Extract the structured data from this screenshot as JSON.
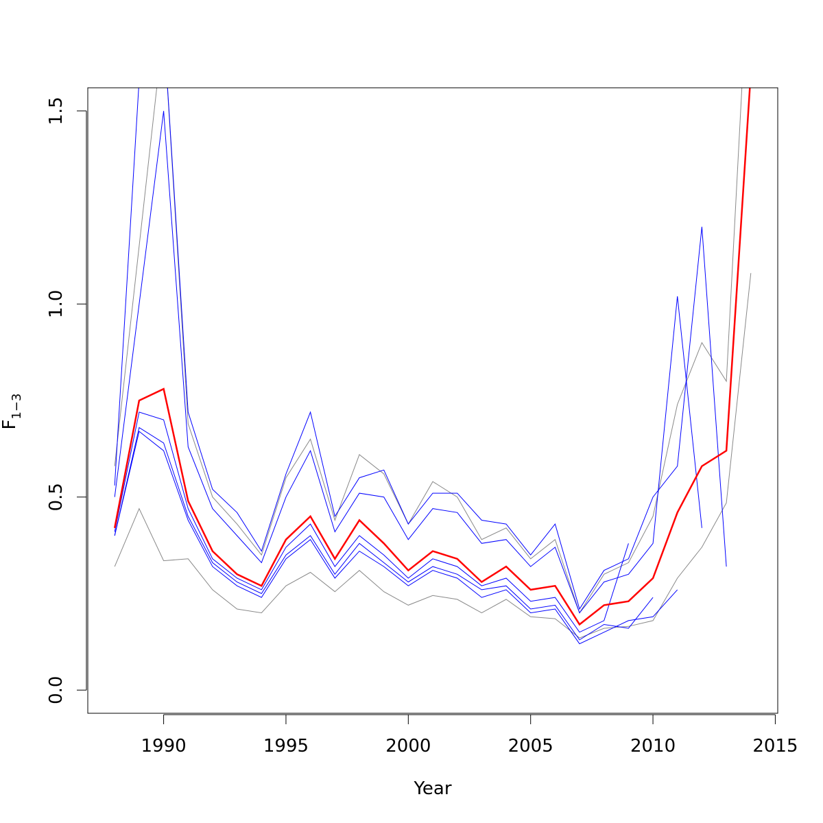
{
  "chart_data": {
    "type": "line",
    "title": "",
    "xlabel": "Year",
    "ylabel": "F",
    "ylabel_subscript": "1−3",
    "xlim": [
      1986.9,
      2015.1
    ],
    "ylim": [
      -0.06,
      1.56
    ],
    "xticks": [
      1990,
      1995,
      2000,
      2005,
      2010,
      2015
    ],
    "xtick_labels": [
      "1990",
      "1995",
      "2000",
      "2005",
      "2010",
      "2015"
    ],
    "yticks": [
      0.0,
      0.5,
      1.0,
      1.5
    ],
    "ytick_labels": [
      "0.0",
      "0.5",
      "1.0",
      "1.5"
    ],
    "grid": false,
    "series": [
      {
        "color": "#888888",
        "width": 1,
        "x": [
          1988,
          1989,
          1990,
          1991,
          1992,
          1993,
          1994,
          1995,
          1996,
          1997,
          1998,
          1999,
          2000,
          2001,
          2002,
          2003,
          2004,
          2005,
          2006,
          2007,
          2008,
          2009,
          2010,
          2011,
          2012,
          2013,
          2014
        ],
        "values": [
          0.32,
          0.47,
          0.335,
          0.34,
          0.26,
          0.21,
          0.2,
          0.27,
          0.305,
          0.255,
          0.31,
          0.255,
          0.22,
          0.245,
          0.235,
          0.2,
          0.235,
          0.19,
          0.185,
          0.135,
          0.16,
          0.165,
          0.18,
          0.29,
          0.37,
          0.485,
          1.08
        ]
      },
      {
        "color": "#888888",
        "width": 1,
        "x": [
          1988,
          1989,
          1990,
          1991,
          1992,
          1993,
          1994,
          1995,
          1996,
          1997,
          1998,
          1999,
          2000,
          2001,
          2002,
          2003,
          2004,
          2005,
          2006,
          2007,
          2008,
          2009,
          2010,
          2011,
          2012,
          2013,
          2014
        ],
        "values": [
          0.58,
          1.15,
          1.72,
          0.69,
          0.5,
          0.43,
          0.35,
          0.55,
          0.65,
          0.44,
          0.61,
          0.56,
          0.43,
          0.54,
          0.5,
          0.39,
          0.42,
          0.34,
          0.39,
          0.2,
          0.3,
          0.33,
          0.45,
          0.74,
          0.9,
          0.8,
          2.0
        ]
      },
      {
        "color": "#0000ff",
        "width": 1,
        "x": [
          1988,
          1989,
          1990
        ],
        "values": [
          0.53,
          1.58,
          1.72
        ]
      },
      {
        "color": "#0000ff",
        "width": 1,
        "x": [
          1988,
          1989,
          1990,
          1991,
          1992,
          1993,
          1994,
          1995,
          1996,
          1997,
          1998,
          1999,
          2000,
          2001,
          2002,
          2003,
          2004,
          2005,
          2006,
          2007,
          2008,
          2009,
          2010,
          2011,
          2012
        ],
        "values": [
          0.5,
          1.0,
          1.5,
          0.63,
          0.47,
          0.4,
          0.33,
          0.5,
          0.62,
          0.41,
          0.51,
          0.5,
          0.39,
          0.47,
          0.46,
          0.38,
          0.39,
          0.32,
          0.37,
          0.2,
          0.28,
          0.3,
          0.38,
          1.02,
          0.42
        ]
      },
      {
        "color": "#0000ff",
        "width": 1,
        "x": [
          1990,
          1991,
          1992,
          1993,
          1994,
          1995,
          1996,
          1997,
          1998,
          1999,
          2000,
          2001,
          2002,
          2003,
          2004,
          2005,
          2006,
          2007,
          2008,
          2009,
          2010,
          2011,
          2012,
          2013
        ],
        "values": [
          1.72,
          0.72,
          0.52,
          0.46,
          0.36,
          0.56,
          0.72,
          0.45,
          0.55,
          0.57,
          0.43,
          0.51,
          0.51,
          0.44,
          0.43,
          0.35,
          0.43,
          0.21,
          0.31,
          0.34,
          0.5,
          0.58,
          1.2,
          0.32
        ]
      },
      {
        "color": "#0000ff",
        "width": 1,
        "x": [
          1988,
          1989,
          1990,
          1991,
          1992,
          1993,
          1994,
          1995,
          1996,
          1997,
          1998,
          1999,
          2000,
          2001,
          2002,
          2003,
          2004,
          2005,
          2006,
          2007,
          2008,
          2009
        ],
        "values": [
          0.41,
          0.72,
          0.7,
          0.47,
          0.34,
          0.29,
          0.26,
          0.37,
          0.43,
          0.32,
          0.4,
          0.35,
          0.29,
          0.34,
          0.32,
          0.27,
          0.29,
          0.23,
          0.24,
          0.15,
          0.18,
          0.38
        ]
      },
      {
        "color": "#0000ff",
        "width": 1,
        "x": [
          1988,
          1989,
          1990,
          1991,
          1992,
          1993,
          1994,
          1995,
          1996,
          1997,
          1998,
          1999,
          2000,
          2001,
          2002,
          2003,
          2004,
          2005,
          2006,
          2007,
          2008,
          2009,
          2010
        ],
        "values": [
          0.4,
          0.68,
          0.64,
          0.45,
          0.33,
          0.28,
          0.25,
          0.35,
          0.4,
          0.3,
          0.38,
          0.33,
          0.28,
          0.32,
          0.3,
          0.26,
          0.27,
          0.21,
          0.22,
          0.13,
          0.17,
          0.16,
          0.24
        ]
      },
      {
        "color": "#0000ff",
        "width": 1,
        "x": [
          1988,
          1989,
          1990,
          1991,
          1992,
          1993,
          1994,
          1995,
          1996,
          1997,
          1998,
          1999,
          2000,
          2001,
          2002,
          2003,
          2004,
          2005,
          2006,
          2007,
          2008,
          2009,
          2010,
          2011
        ],
        "values": [
          0.4,
          0.67,
          0.62,
          0.44,
          0.32,
          0.27,
          0.24,
          0.34,
          0.39,
          0.29,
          0.36,
          0.32,
          0.27,
          0.31,
          0.29,
          0.24,
          0.26,
          0.2,
          0.21,
          0.12,
          0.15,
          0.18,
          0.19,
          0.26
        ]
      },
      {
        "color": "#ff0000",
        "width": 2.5,
        "x": [
          1988,
          1989,
          1990,
          1991,
          1992,
          1993,
          1994,
          1995,
          1996,
          1997,
          1998,
          1999,
          2000,
          2001,
          2002,
          2003,
          2004,
          2005,
          2006,
          2007,
          2008,
          2009,
          2010,
          2011,
          2012,
          2013,
          2014
        ],
        "values": [
          0.42,
          0.75,
          0.78,
          0.49,
          0.36,
          0.3,
          0.27,
          0.39,
          0.45,
          0.34,
          0.44,
          0.38,
          0.31,
          0.36,
          0.34,
          0.28,
          0.32,
          0.26,
          0.27,
          0.17,
          0.22,
          0.23,
          0.29,
          0.46,
          0.58,
          0.62,
          1.6
        ]
      }
    ]
  }
}
